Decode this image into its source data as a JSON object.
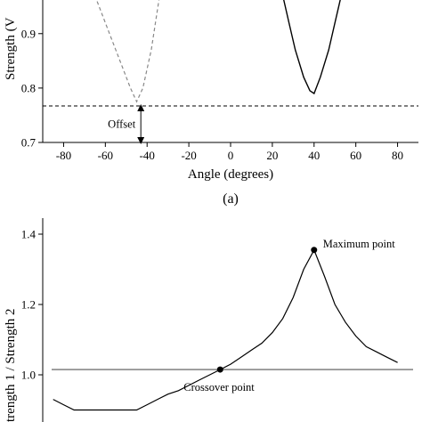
{
  "chart_data": [
    {
      "type": "line",
      "panel_label": "(a)",
      "xlabel": "Angle (degrees)",
      "ylabel": "Strength (V",
      "xlim": [
        -90,
        90
      ],
      "ylim": [
        0.7,
        0.97
      ],
      "xticks": [
        "-80",
        "-60",
        "-40",
        "-20",
        "0",
        "20",
        "40",
        "60",
        "80"
      ],
      "yticks": [
        "0.7",
        "0.8",
        "0.9"
      ],
      "series": [
        {
          "style": "dashed",
          "color": "#888888",
          "x": [
            -65,
            -58,
            -52,
            -48,
            -45,
            -42,
            -38,
            -34
          ],
          "y": [
            0.97,
            0.9,
            0.84,
            0.8,
            0.775,
            0.8,
            0.87,
            0.97
          ]
        },
        {
          "style": "solid",
          "color": "#000000",
          "x": [
            25,
            28,
            31,
            35,
            38,
            40,
            43,
            47,
            50,
            53
          ],
          "y": [
            0.97,
            0.92,
            0.87,
            0.82,
            0.795,
            0.79,
            0.82,
            0.87,
            0.92,
            0.97
          ]
        }
      ],
      "offset_line": {
        "y": 0.767,
        "style": "dashed"
      },
      "annotations": [
        {
          "text": "Offset",
          "x": -43,
          "y_from": 0.7,
          "y_to": 0.767
        }
      ]
    },
    {
      "type": "line",
      "xlabel": "",
      "ylabel": "trength 1 / Strength 2",
      "xlim": [
        -90,
        90
      ],
      "ylim": [
        0.9,
        1.45
      ],
      "yticks": [
        "1.0",
        "1.2",
        "1.4"
      ],
      "reference_line": {
        "y": 1.015
      },
      "series": [
        {
          "style": "solid",
          "color": "#000000",
          "x": [
            -85,
            -80,
            -75,
            -45,
            -40,
            -35,
            -30,
            -25,
            -20,
            -15,
            -10,
            -5,
            0,
            5,
            10,
            15,
            20,
            25,
            30,
            35,
            40,
            45,
            50,
            55,
            60,
            65,
            70,
            75,
            80
          ],
          "y": [
            0.93,
            0.915,
            0.9,
            0.9,
            0.915,
            0.93,
            0.945,
            0.955,
            0.97,
            0.985,
            1.0,
            1.015,
            1.03,
            1.05,
            1.07,
            1.09,
            1.12,
            1.16,
            1.22,
            1.3,
            1.355,
            1.28,
            1.2,
            1.15,
            1.11,
            1.08,
            1.065,
            1.05,
            1.035
          ]
        }
      ],
      "points": [
        {
          "name": "Maximum point",
          "x": 40,
          "y": 1.355
        },
        {
          "name": "Crossover point",
          "x": -5,
          "y": 1.015
        }
      ],
      "annotations": [
        {
          "text": "Maximum point"
        },
        {
          "text": "Crossover point"
        }
      ]
    }
  ]
}
